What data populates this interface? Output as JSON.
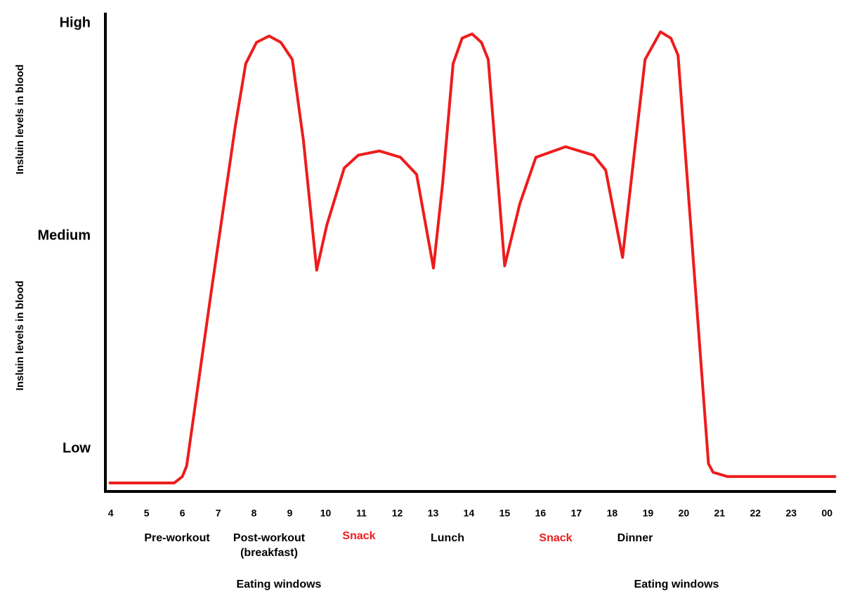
{
  "chart_data": {
    "type": "line",
    "y_labels": [
      "Insluin levels in blood",
      "Insluin levels in blood"
    ],
    "x": [
      3.98,
      5.77,
      6.0,
      6.12,
      6.79,
      7.48,
      7.77,
      8.07,
      8.42,
      8.75,
      9.07,
      9.38,
      9.75,
      10.03,
      10.52,
      10.91,
      11.5,
      12.09,
      12.54,
      13.01,
      13.27,
      13.56,
      13.81,
      14.09,
      14.35,
      14.54,
      15.0,
      15.42,
      15.87,
      16.7,
      17.48,
      17.82,
      18.29,
      18.66,
      18.92,
      19.35,
      19.64,
      19.84,
      20.69,
      20.82,
      21.22,
      24.22
    ],
    "series": [
      {
        "color": "#ee1c1c",
        "values": [
          -0.16,
          -0.16,
          -0.13,
          -0.08,
          0.72,
          1.52,
          1.81,
          1.91,
          1.94,
          1.91,
          1.83,
          1.45,
          0.84,
          1.05,
          1.32,
          1.38,
          1.4,
          1.37,
          1.29,
          0.85,
          1.25,
          1.81,
          1.93,
          1.95,
          1.91,
          1.83,
          0.86,
          1.15,
          1.37,
          1.42,
          1.38,
          1.31,
          0.9,
          1.45,
          1.83,
          1.96,
          1.93,
          1.85,
          -0.07,
          -0.11,
          -0.13,
          -0.13
        ]
      }
    ],
    "xlim": [
      3.85,
      24.25
    ],
    "xticks": [
      4,
      5,
      6,
      7,
      8,
      9,
      10,
      11,
      12,
      13,
      14,
      15,
      16,
      17,
      18,
      19,
      20,
      21,
      22,
      23,
      {
        "value": 24,
        "label": "00"
      }
    ],
    "ylim": [
      -0.2,
      2.05
    ],
    "yticks": [
      {
        "value": 0,
        "label": "Low"
      },
      {
        "value": 1,
        "label": "Medium"
      },
      {
        "value": 2,
        "label": "High"
      }
    ],
    "annotations": [
      {
        "lines": [
          "Pre-workout"
        ],
        "color": "#000000"
      },
      {
        "lines": [
          "Post-workout",
          "(breakfast)"
        ],
        "color": "#000000"
      },
      {
        "lines": [
          "Snack"
        ],
        "color": "#ee1c1c"
      },
      {
        "lines": [
          "Lunch"
        ],
        "color": "#000000"
      },
      {
        "lines": [
          "Snack"
        ],
        "color": "#ee1c1c"
      },
      {
        "lines": [
          "Dinner"
        ],
        "color": "#000000"
      },
      {
        "lines": [
          "Eating windows"
        ],
        "color": "#000000"
      },
      {
        "lines": [
          "Eating windows"
        ],
        "color": "#000000"
      }
    ]
  }
}
